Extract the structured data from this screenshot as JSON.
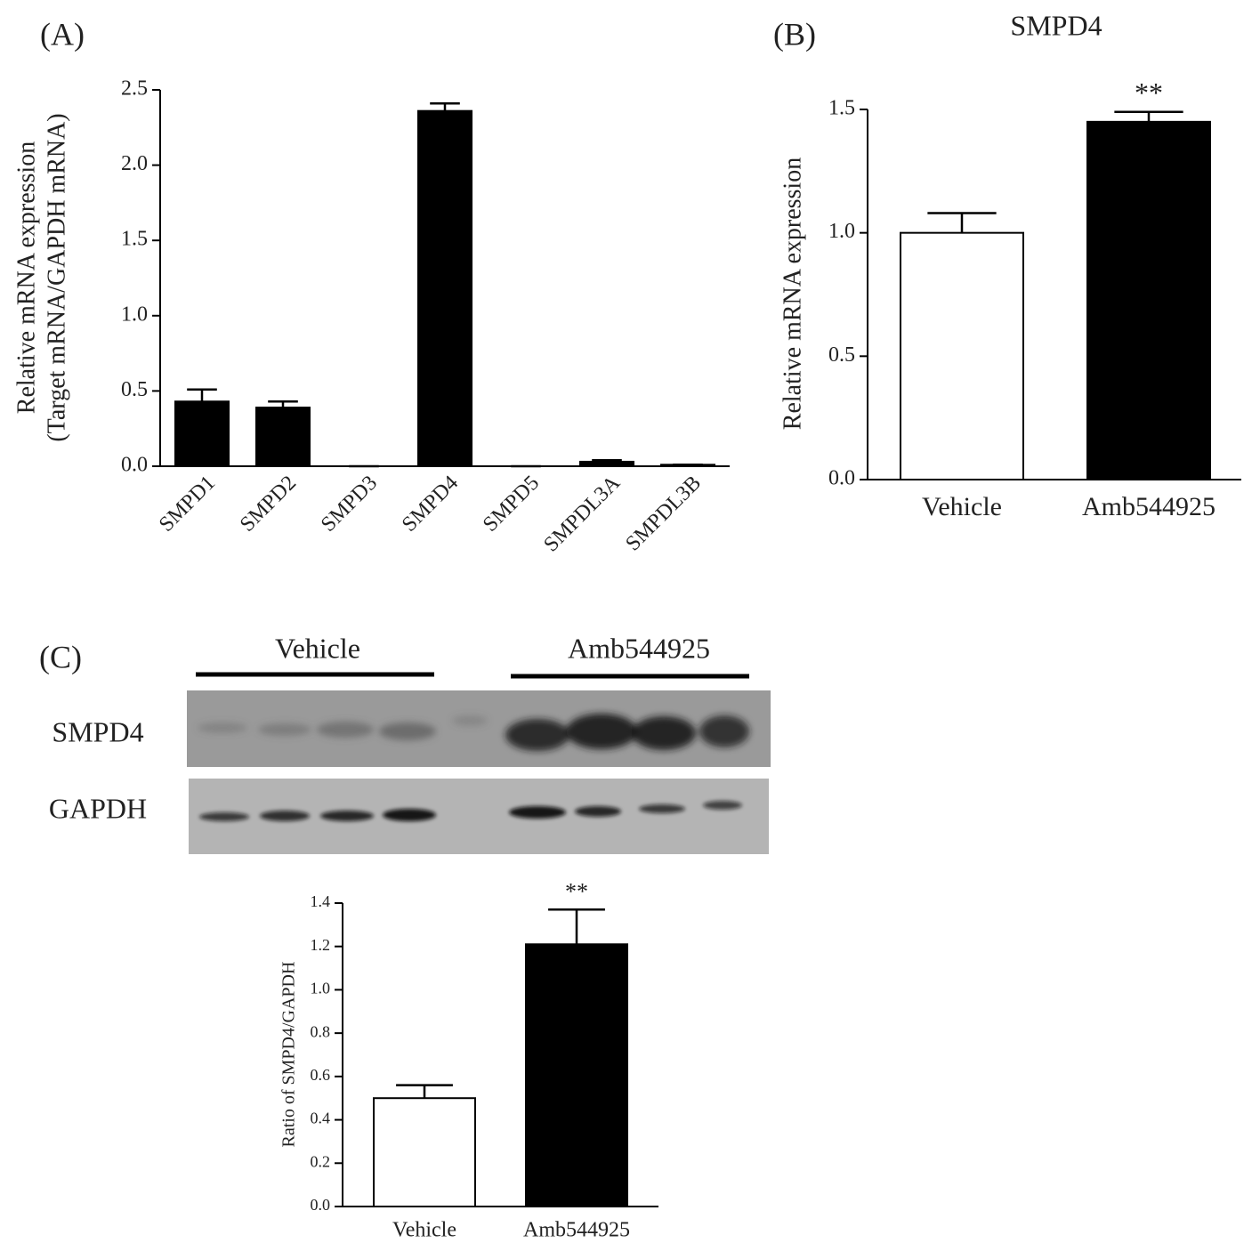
{
  "chart_data": [
    {
      "type": "bar",
      "label": "(A)",
      "ylabel": [
        "Relative mRNA expression",
        "(Target mRNA/GAPDH mRNA)"
      ],
      "categories": [
        "SMPD1",
        "SMPD2",
        "SMPD3",
        "SMPD4",
        "SMPD5",
        "SMPDL3A",
        "SMPDL3B"
      ],
      "values": [
        0.43,
        0.39,
        0,
        2.36,
        0,
        0.03,
        0.01
      ],
      "errors": [
        0.08,
        0.04,
        0,
        0.05,
        0,
        0.01,
        0
      ],
      "color": "#000000",
      "ylim": [
        0,
        2.5
      ],
      "yticks": [
        {
          "value": 0,
          "label": "0.0"
        },
        {
          "value": 0.5,
          "label": "0.5"
        },
        {
          "value": 1,
          "label": "1.0"
        },
        {
          "value": 1.5,
          "label": "1.5"
        },
        {
          "value": 2,
          "label": "2.0"
        },
        {
          "value": 2.5,
          "label": "2.5"
        }
      ]
    },
    {
      "type": "bar",
      "label": "(B)",
      "title": "SMPD4",
      "ylabel": "Relative mRNA expression",
      "categories": [
        "Vehicle",
        "Amb544925"
      ],
      "values": [
        1.0,
        1.45
      ],
      "errors": [
        0.08,
        0.04
      ],
      "colors": [
        "#ffffff",
        "#000000"
      ],
      "annotation": "**",
      "ylim": [
        0,
        1.5
      ],
      "yticks": [
        {
          "value": 0,
          "label": "0.0"
        },
        {
          "value": 0.5,
          "label": "0.5"
        },
        {
          "value": 1,
          "label": "1.0"
        },
        {
          "value": 1.5,
          "label": "1.5"
        }
      ]
    },
    {
      "type": "bar",
      "ylabel": "Ratio of SMPD4/GAPDH",
      "categories": [
        "Vehicle",
        "Amb544925"
      ],
      "values": [
        0.5,
        1.21
      ],
      "errors": [
        0.06,
        0.16
      ],
      "colors": [
        "#ffffff",
        "#000000"
      ],
      "annotation": "**",
      "ylim": [
        0,
        1.4
      ],
      "yticks": [
        {
          "value": 0,
          "label": "0.0"
        },
        {
          "value": 0.2,
          "label": "0.2"
        },
        {
          "value": 0.4,
          "label": "0.4"
        },
        {
          "value": 0.6,
          "label": "0.6"
        },
        {
          "value": 0.8,
          "label": "0.8"
        },
        {
          "value": 1,
          "label": "1.0"
        },
        {
          "value": 1.2,
          "label": "1.2"
        },
        {
          "value": 1.4,
          "label": "1.4"
        }
      ]
    }
  ],
  "blot": {
    "label": "(C)",
    "groups": [
      "Vehicle",
      "Amb544925"
    ],
    "rows": [
      "SMPD4",
      "GAPDH"
    ]
  }
}
